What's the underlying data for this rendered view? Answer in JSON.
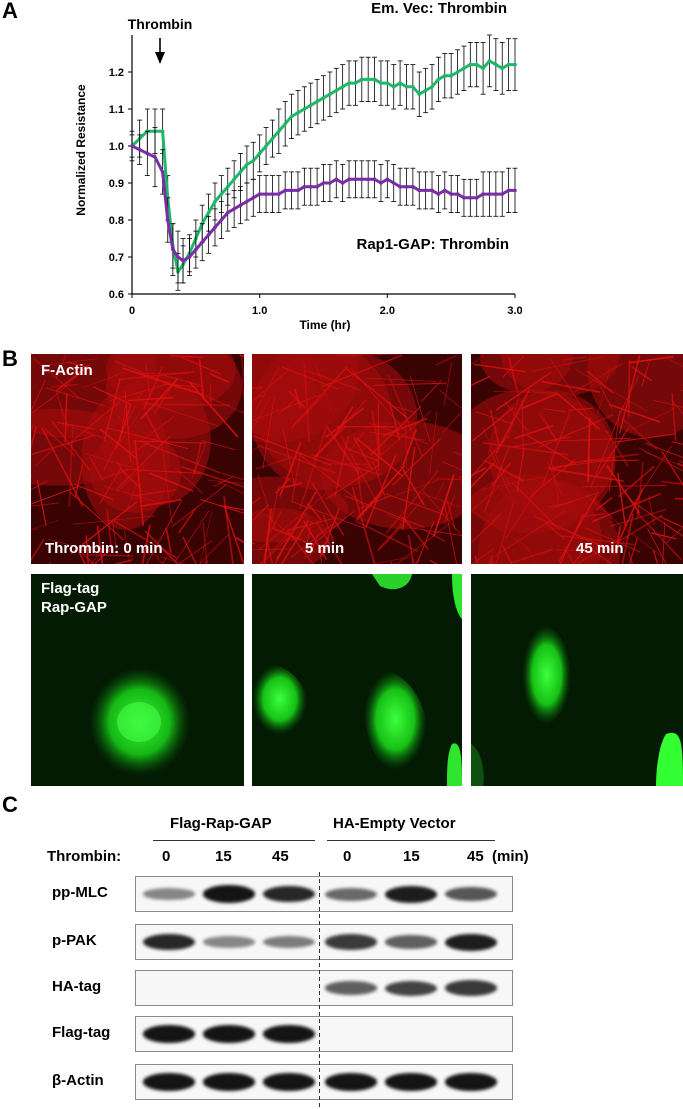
{
  "panel_a": {
    "letter": "A",
    "arrow_label": "Thrombin",
    "series_label_top": "Em. Vec: Thrombin",
    "series_label_bottom": "Rap1-GAP: Thrombin"
  },
  "chart_data": {
    "type": "line",
    "xlabel": "Time (hr)",
    "ylabel": "Normalized Resistance",
    "xlim": [
      0,
      3.0
    ],
    "ylim": [
      0.6,
      1.3
    ],
    "xticks": [
      "0",
      "1.0",
      "2.0",
      "3.0"
    ],
    "yticks": [
      "0.6",
      "0.7",
      "0.8",
      "0.9",
      "1.0",
      "1.1",
      "1.2"
    ],
    "series": [
      {
        "name": "Em. Vec: Thrombin",
        "color": "#1fb86b",
        "x": [
          0,
          0.06,
          0.12,
          0.18,
          0.24,
          0.28,
          0.32,
          0.36,
          0.4,
          0.45,
          0.5,
          0.55,
          0.6,
          0.65,
          0.7,
          0.75,
          0.8,
          0.85,
          0.9,
          0.95,
          1.0,
          1.05,
          1.1,
          1.15,
          1.2,
          1.25,
          1.3,
          1.35,
          1.4,
          1.45,
          1.5,
          1.55,
          1.6,
          1.65,
          1.7,
          1.75,
          1.8,
          1.85,
          1.9,
          1.95,
          2.0,
          2.05,
          2.1,
          2.15,
          2.2,
          2.25,
          2.3,
          2.35,
          2.4,
          2.45,
          2.5,
          2.55,
          2.6,
          2.65,
          2.7,
          2.75,
          2.8,
          2.85,
          2.9,
          2.95,
          3.0
        ],
        "y": [
          1.0,
          1.02,
          1.04,
          1.04,
          1.04,
          0.86,
          0.73,
          0.66,
          0.68,
          0.71,
          0.75,
          0.79,
          0.82,
          0.85,
          0.87,
          0.89,
          0.91,
          0.93,
          0.95,
          0.96,
          0.98,
          1.0,
          1.02,
          1.04,
          1.06,
          1.08,
          1.09,
          1.1,
          1.11,
          1.12,
          1.13,
          1.14,
          1.15,
          1.16,
          1.17,
          1.17,
          1.18,
          1.18,
          1.18,
          1.17,
          1.17,
          1.16,
          1.17,
          1.16,
          1.16,
          1.14,
          1.15,
          1.16,
          1.18,
          1.19,
          1.19,
          1.2,
          1.21,
          1.22,
          1.22,
          1.21,
          1.23,
          1.22,
          1.21,
          1.22,
          1.22
        ],
        "err": [
          0.04,
          0.05,
          0.06,
          0.06,
          0.06,
          0.06,
          0.06,
          0.05,
          0.05,
          0.05,
          0.05,
          0.05,
          0.05,
          0.05,
          0.05,
          0.05,
          0.05,
          0.05,
          0.05,
          0.05,
          0.05,
          0.05,
          0.05,
          0.06,
          0.06,
          0.06,
          0.06,
          0.06,
          0.06,
          0.06,
          0.06,
          0.06,
          0.06,
          0.06,
          0.06,
          0.06,
          0.06,
          0.06,
          0.06,
          0.06,
          0.06,
          0.06,
          0.06,
          0.06,
          0.06,
          0.06,
          0.06,
          0.06,
          0.06,
          0.06,
          0.06,
          0.06,
          0.06,
          0.06,
          0.06,
          0.07,
          0.07,
          0.07,
          0.07,
          0.07,
          0.07
        ]
      },
      {
        "name": "Rap1-GAP: Thrombin",
        "color": "#7a2ea6",
        "x": [
          0,
          0.06,
          0.12,
          0.18,
          0.24,
          0.28,
          0.32,
          0.36,
          0.4,
          0.45,
          0.5,
          0.55,
          0.6,
          0.65,
          0.7,
          0.75,
          0.8,
          0.85,
          0.9,
          0.95,
          1.0,
          1.05,
          1.1,
          1.15,
          1.2,
          1.25,
          1.3,
          1.35,
          1.4,
          1.45,
          1.5,
          1.55,
          1.6,
          1.65,
          1.7,
          1.75,
          1.8,
          1.85,
          1.9,
          1.95,
          2.0,
          2.05,
          2.1,
          2.15,
          2.2,
          2.25,
          2.3,
          2.35,
          2.4,
          2.45,
          2.5,
          2.55,
          2.6,
          2.65,
          2.7,
          2.75,
          2.8,
          2.85,
          2.9,
          2.95,
          3.0
        ],
        "y": [
          1.0,
          0.99,
          0.98,
          0.97,
          0.93,
          0.8,
          0.72,
          0.7,
          0.69,
          0.7,
          0.72,
          0.74,
          0.76,
          0.78,
          0.8,
          0.82,
          0.83,
          0.84,
          0.85,
          0.86,
          0.87,
          0.87,
          0.87,
          0.87,
          0.88,
          0.88,
          0.88,
          0.89,
          0.89,
          0.89,
          0.9,
          0.9,
          0.91,
          0.9,
          0.91,
          0.91,
          0.91,
          0.91,
          0.91,
          0.9,
          0.91,
          0.9,
          0.89,
          0.89,
          0.89,
          0.88,
          0.88,
          0.88,
          0.87,
          0.88,
          0.87,
          0.87,
          0.86,
          0.86,
          0.86,
          0.87,
          0.87,
          0.87,
          0.87,
          0.88,
          0.88
        ],
        "err": [
          0.03,
          0.04,
          0.06,
          0.08,
          0.06,
          0.06,
          0.07,
          0.07,
          0.06,
          0.05,
          0.05,
          0.05,
          0.05,
          0.05,
          0.05,
          0.05,
          0.05,
          0.05,
          0.05,
          0.05,
          0.05,
          0.05,
          0.05,
          0.05,
          0.05,
          0.05,
          0.05,
          0.05,
          0.05,
          0.05,
          0.05,
          0.05,
          0.05,
          0.05,
          0.05,
          0.05,
          0.05,
          0.05,
          0.05,
          0.05,
          0.05,
          0.05,
          0.05,
          0.05,
          0.05,
          0.05,
          0.05,
          0.05,
          0.05,
          0.05,
          0.05,
          0.05,
          0.05,
          0.05,
          0.05,
          0.06,
          0.06,
          0.06,
          0.06,
          0.06,
          0.06
        ]
      }
    ]
  },
  "panel_b": {
    "letter": "B",
    "top_row_labels": [
      "F-Actin",
      "Thrombin: 0 min",
      "5 min",
      "45 min"
    ],
    "bottom_label_line1": "Flag-tag",
    "bottom_label_line2": "Rap-GAP",
    "red_color": "#e01010",
    "green_color": "#22e022"
  },
  "panel_c": {
    "letter": "C",
    "group1": "Flag-Rap-GAP",
    "group2": "HA-Empty Vector",
    "thrombin_label": "Thrombin:",
    "lanes": [
      "0",
      "15",
      "45",
      "0",
      "15",
      "45"
    ],
    "unit": "(min)",
    "rows": [
      {
        "label": "pp-MLC",
        "intensity": [
          0.35,
          0.95,
          0.85,
          0.5,
          0.9,
          0.6
        ]
      },
      {
        "label": "p-PAK",
        "intensity": [
          0.85,
          0.35,
          0.4,
          0.75,
          0.55,
          0.9
        ]
      },
      {
        "label": "HA-tag",
        "intensity": [
          0.0,
          0.0,
          0.0,
          0.55,
          0.7,
          0.75
        ]
      },
      {
        "label": "Flag-tag",
        "intensity": [
          0.95,
          0.95,
          0.95,
          0.0,
          0.0,
          0.0
        ]
      },
      {
        "label": "β-Actin",
        "intensity": [
          0.95,
          0.95,
          0.95,
          0.95,
          0.95,
          0.95
        ]
      }
    ]
  }
}
